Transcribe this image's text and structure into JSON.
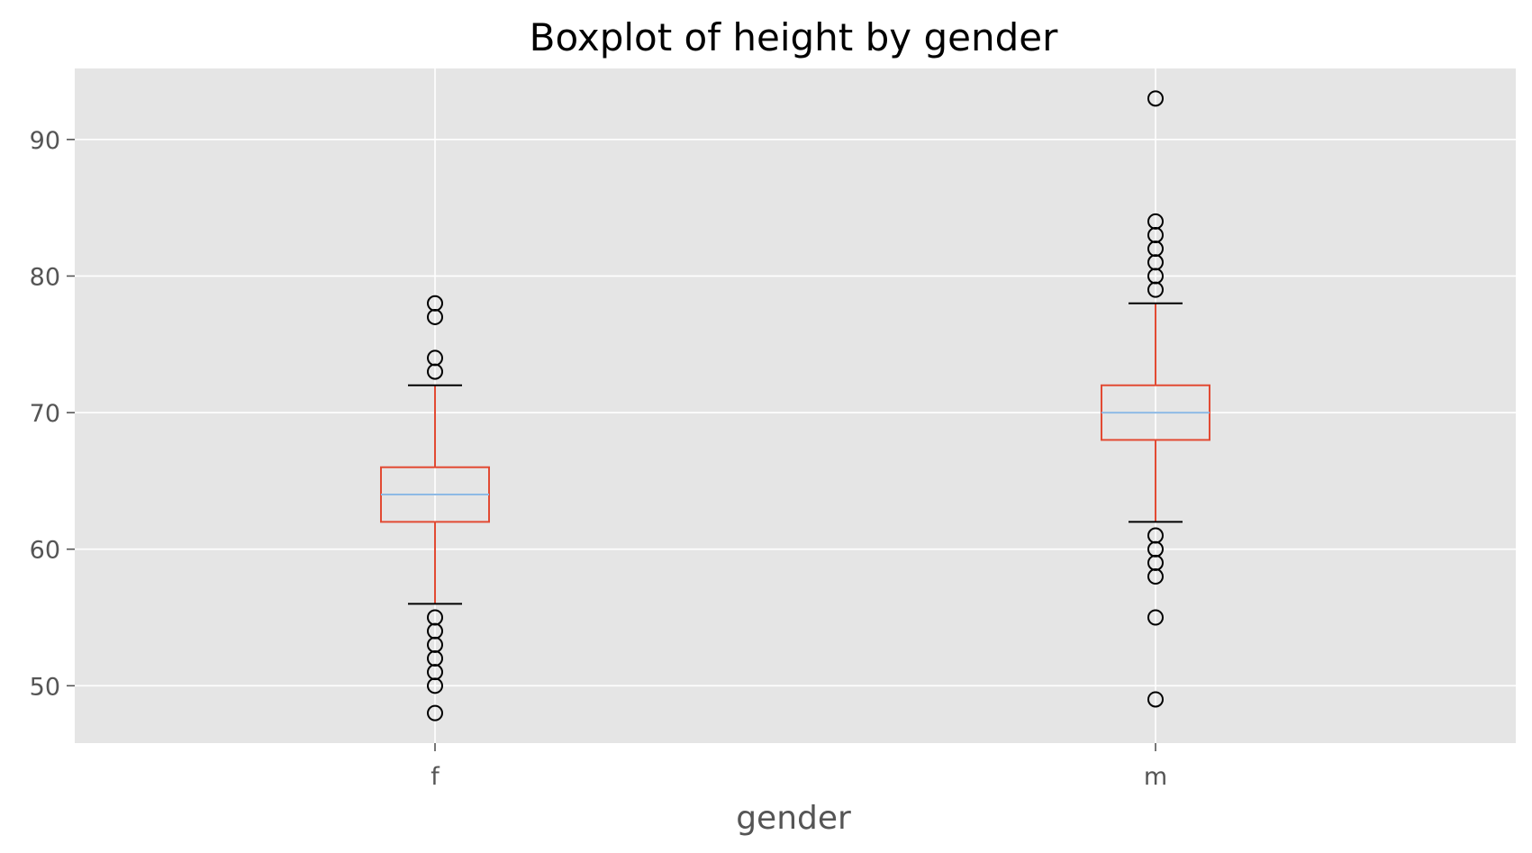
{
  "chart_data": {
    "type": "box",
    "title": "Boxplot of height by gender",
    "xlabel": "gender",
    "ylabel": "",
    "ylim": [
      45.8,
      95.2
    ],
    "yticks": [
      50,
      60,
      70,
      80,
      90
    ],
    "ytick_labels": [
      "50",
      "60",
      "70",
      "80",
      "90"
    ],
    "categories": [
      "f",
      "m"
    ],
    "grid": true,
    "boxes": [
      {
        "category": "f",
        "whisker_low": 56,
        "q1": 62,
        "median": 64,
        "q3": 66,
        "whisker_high": 72,
        "outliers": [
          48,
          50,
          51,
          52,
          53,
          54,
          55,
          73,
          74,
          77,
          78
        ]
      },
      {
        "category": "m",
        "whisker_low": 62,
        "q1": 68,
        "median": 70,
        "q3": 72,
        "whisker_high": 78,
        "outliers": [
          49,
          55,
          58,
          59,
          60,
          61,
          79,
          80,
          81,
          82,
          83,
          84,
          93
        ]
      }
    ],
    "colors": {
      "panel_background": "#E5E5E5",
      "grid": "#FFFFFF",
      "box": "#E24A33",
      "median": "#8EBAE5",
      "caps": "#000000",
      "outlier_edge": "#000000"
    }
  }
}
